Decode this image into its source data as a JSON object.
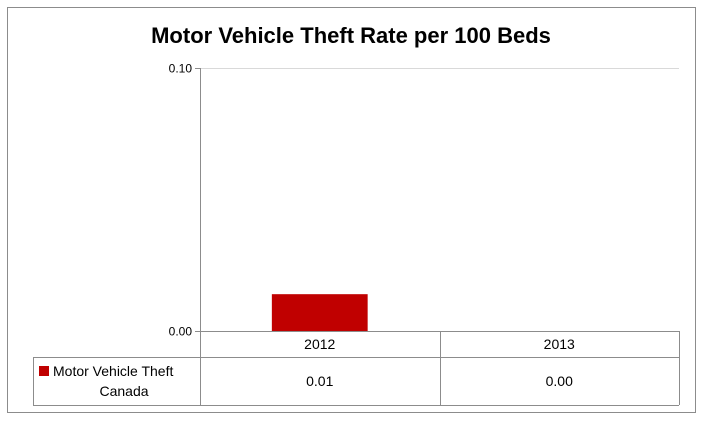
{
  "chart_data": {
    "type": "bar",
    "title": "Motor Vehicle Theft Rate per 100 Beds",
    "categories": [
      "2012",
      "2013"
    ],
    "series": [
      {
        "name": "Motor Vehicle Theft Canada",
        "name_lines": [
          "Motor Vehicle Theft",
          "Canada"
        ],
        "color": "#c00000",
        "values": [
          0.014,
          0.0
        ],
        "table_labels": [
          "0.01",
          "0.00"
        ]
      }
    ],
    "ylim": [
      0,
      0.1
    ],
    "y_ticks": [
      {
        "value": 0.0,
        "label": "0.00"
      },
      {
        "value": 0.1,
        "label": "0.10"
      }
    ],
    "xlabel": "",
    "ylabel": "",
    "grid": false,
    "legend": "data-table-left"
  }
}
